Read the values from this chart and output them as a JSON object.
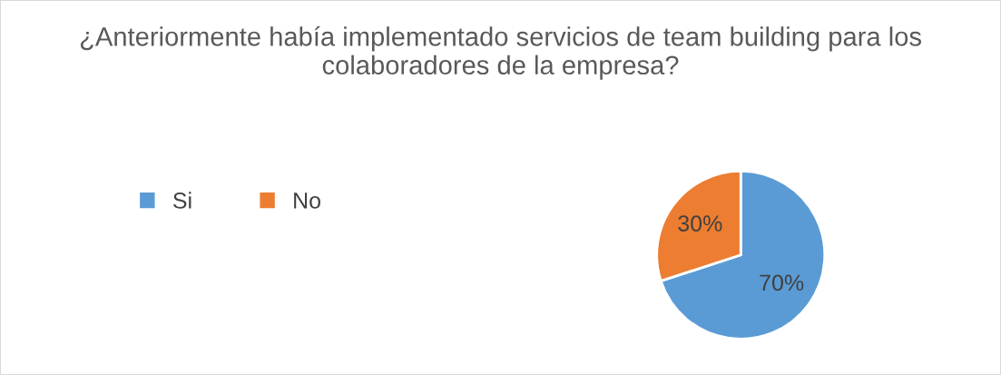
{
  "chart_data": {
    "type": "pie",
    "title": "¿Anteriormente había implementado servicios de team building para los colaboradores de la empresa?",
    "categories": [
      "Si",
      "No"
    ],
    "values": [
      70,
      30
    ],
    "colors": [
      "#5b9bd5",
      "#ed7d31"
    ],
    "value_labels": [
      "70%",
      "30%"
    ],
    "legend": "left"
  }
}
